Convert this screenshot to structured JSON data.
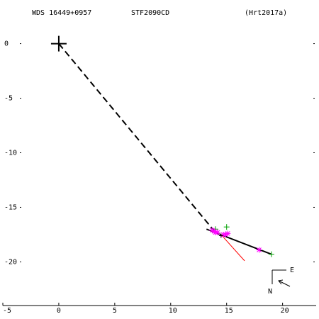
{
  "header": {
    "wds": "WDS 16449+0957",
    "discoverer": "STF2090CD",
    "reference": "(Hrt2017a)"
  },
  "compass": {
    "east": "E",
    "north": "N"
  },
  "chart_data": {
    "type": "scatter",
    "xlim": [
      -5,
      23
    ],
    "ylim": [
      -24,
      4
    ],
    "x_ticks": [
      -5,
      0,
      5,
      10,
      15,
      20
    ],
    "y_ticks": [
      0,
      -5,
      -10,
      -15,
      -20
    ],
    "x_tick_labels": [
      "-5",
      "0",
      "5",
      "10",
      "15",
      "20"
    ],
    "y_tick_labels": [
      "0",
      "-5",
      "-10",
      "-15",
      "-20"
    ],
    "primary": {
      "x": 0,
      "y": 0
    },
    "dashed_line": [
      [
        0,
        0
      ],
      [
        14.0,
        -17.3
      ]
    ],
    "orbit_segment": [
      [
        13.2,
        -17.0
      ],
      [
        19.0,
        -19.3
      ]
    ],
    "residual_line": [
      [
        14.5,
        -17.5
      ],
      [
        16.6,
        -19.9
      ]
    ],
    "series": [
      {
        "marker": "cross",
        "color": "#00a000",
        "points": [
          [
            15.0,
            -16.8
          ],
          [
            19.0,
            -19.3
          ],
          [
            14.0,
            -17.0
          ]
        ]
      },
      {
        "marker": "asterisk",
        "color": "#ff00ff",
        "points": [
          [
            13.7,
            -17.1
          ],
          [
            13.9,
            -17.2
          ],
          [
            14.0,
            -17.3
          ],
          [
            14.2,
            -17.3
          ],
          [
            14.7,
            -17.5
          ],
          [
            14.9,
            -17.5
          ],
          [
            15.1,
            -17.4
          ],
          [
            17.9,
            -18.9
          ]
        ]
      },
      {
        "marker": "small-cross",
        "color": "#000000",
        "points": [
          [
            14.5,
            -17.6
          ]
        ]
      }
    ]
  }
}
